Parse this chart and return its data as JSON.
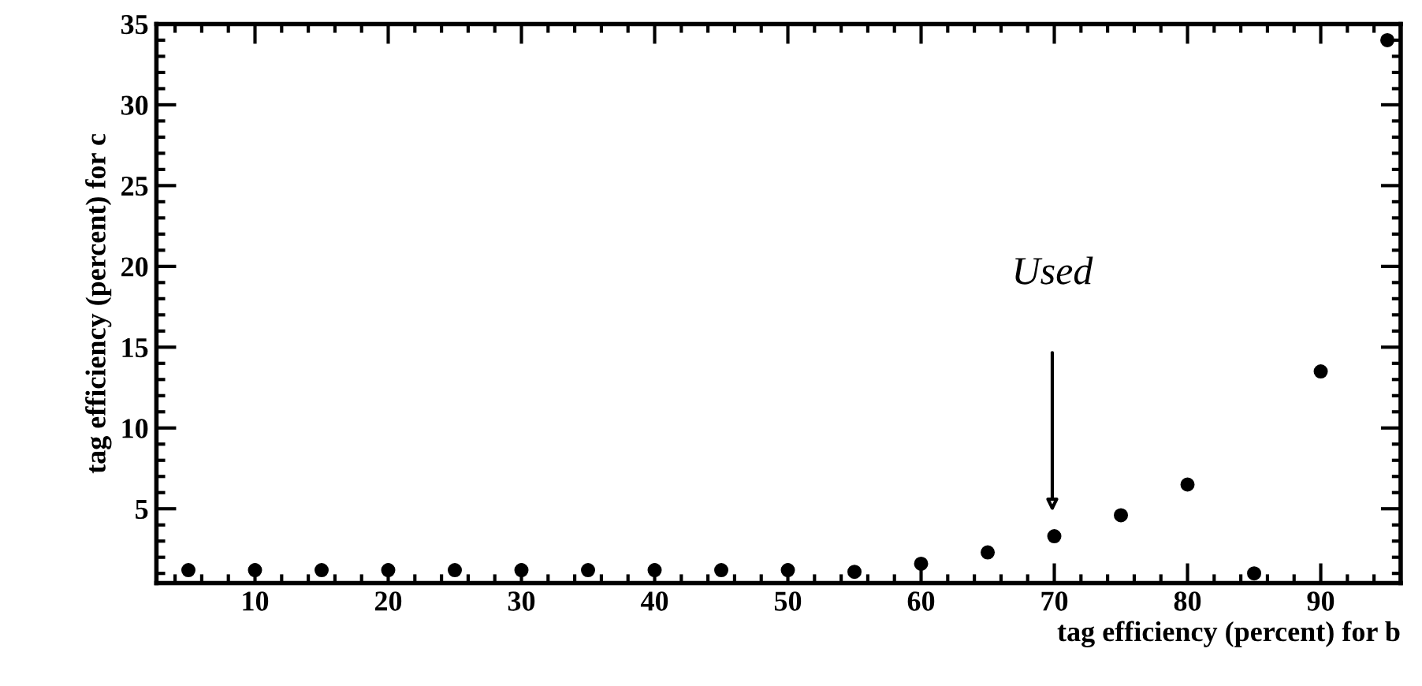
{
  "chart_data": {
    "type": "scatter",
    "xlabel": "tag efficiency (percent) for b",
    "ylabel": "tag efficiency (percent) for c",
    "x": [
      5,
      10,
      15,
      20,
      25,
      30,
      35,
      40,
      45,
      50,
      55,
      60,
      65,
      70,
      75,
      80,
      85,
      90,
      95
    ],
    "series": [
      {
        "color": "#000000",
        "values": [
          1.2,
          1.2,
          1.2,
          1.2,
          1.2,
          1.2,
          1.2,
          1.2,
          1.2,
          1.2,
          1.1,
          1.6,
          2.3,
          3.3,
          4.6,
          6.5,
          1.0,
          13.5,
          34.0
        ]
      }
    ],
    "xlim": [
      2.6,
      96
    ],
    "ylim": [
      0.4,
      35
    ],
    "xticks": [
      10,
      20,
      30,
      40,
      50,
      60,
      70,
      80,
      90
    ],
    "yticks": [
      5,
      10,
      15,
      20,
      25,
      30,
      35
    ],
    "marker": "circle",
    "grid": false,
    "legend": false,
    "annotations": [
      "Used"
    ]
  }
}
